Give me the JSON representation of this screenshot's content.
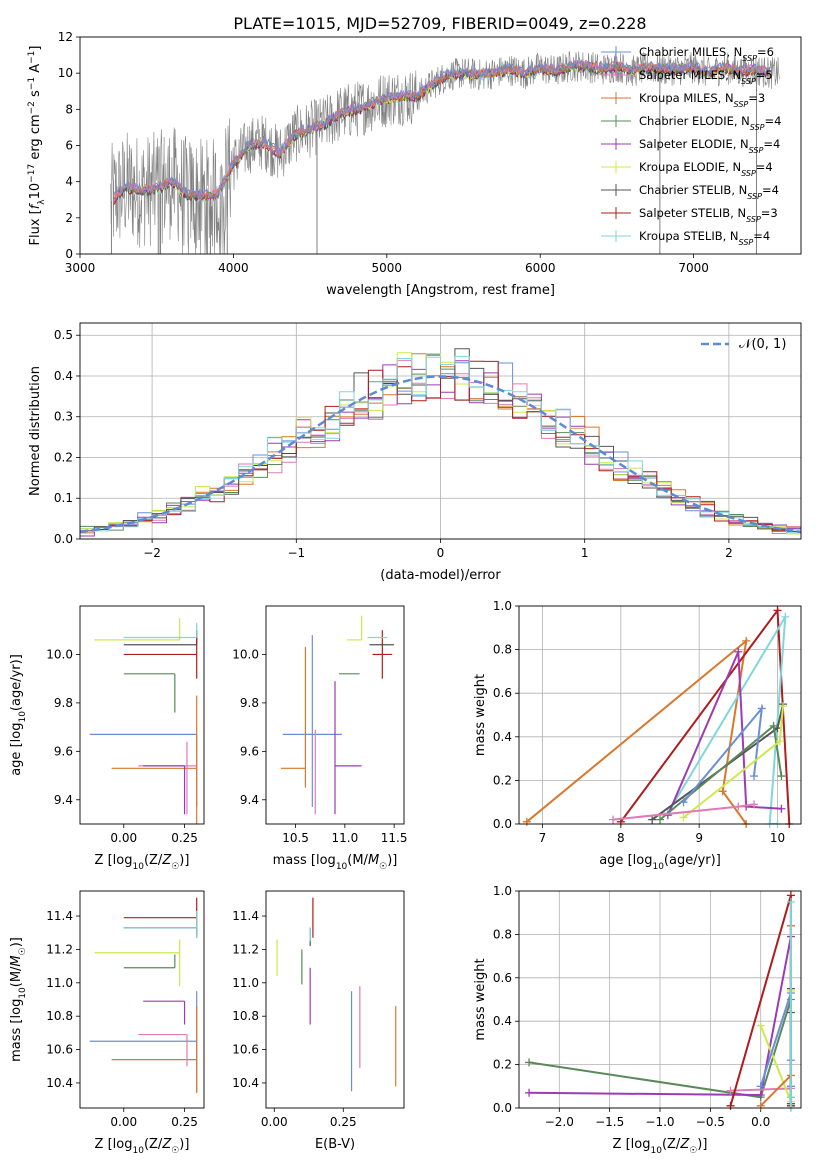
{
  "figure": {
    "title": "PLATE=1015, MJD=52709, FIBERID=0049, z=0.228"
  },
  "colors": {
    "chabrier_miles": "#6b8fd6",
    "salpeter_miles": "#e07bb8",
    "kroupa_miles": "#d9772b",
    "chabrier_elodie": "#5a8a5a",
    "salpeter_elodie": "#9c3bb5",
    "kroupa_elodie": "#cde94c",
    "chabrier_stelib": "#555555",
    "salpeter_stelib": "#b01c1c",
    "kroupa_stelib": "#7fd6dc",
    "data": "#808080",
    "gaussian": "#5b8bd8"
  },
  "chart_data": [
    {
      "id": "spectrum",
      "type": "line",
      "title": "PLATE=1015, MJD=52709, FIBERID=0049, z=0.228",
      "xlabel": "wavelength [Angstrom, rest frame]",
      "ylabel": "Flux [f_λ 10^-17 erg cm^-2 s^-1 A^-1]",
      "xlim": [
        3000,
        7700
      ],
      "ylim": [
        0,
        12
      ],
      "xticks": [
        3000,
        4000,
        5000,
        6000,
        7000
      ],
      "yticks": [
        0,
        2,
        4,
        6,
        8,
        10,
        12
      ],
      "legend_loc": "upper right",
      "legend": [
        {
          "label": "Chabrier MILES, N",
          "sub": "SSP",
          "n": "=6",
          "color_key": "chabrier_miles"
        },
        {
          "label": "Salpeter MILES, N",
          "sub": "SSP",
          "n": "=5",
          "color_key": "salpeter_miles"
        },
        {
          "label": "Kroupa MILES, N",
          "sub": "SSP",
          "n": "=3",
          "color_key": "kroupa_miles"
        },
        {
          "label": "Chabrier ELODIE, N",
          "sub": "SSP",
          "n": "=4",
          "color_key": "chabrier_elodie"
        },
        {
          "label": "Salpeter ELODIE, N",
          "sub": "SSP",
          "n": "=4",
          "color_key": "salpeter_elodie"
        },
        {
          "label": "Kroupa ELODIE, N",
          "sub": "SSP",
          "n": "=4",
          "color_key": "kroupa_elodie"
        },
        {
          "label": "Chabrier STELIB, N",
          "sub": "SSP",
          "n": "=4",
          "color_key": "chabrier_stelib"
        },
        {
          "label": "Salpeter STELIB, N",
          "sub": "SSP",
          "n": "=3",
          "color_key": "salpeter_stelib"
        },
        {
          "label": "Kroupa STELIB, N",
          "sub": "SSP",
          "n": "=4",
          "color_key": "kroupa_stelib"
        }
      ],
      "model_continuum": {
        "x": [
          3200,
          3300,
          3400,
          3500,
          3600,
          3700,
          3800,
          3900,
          4000,
          4100,
          4200,
          4300,
          4400,
          4500,
          4600,
          4700,
          4800,
          4900,
          5000,
          5100,
          5200,
          5300,
          5400,
          5500,
          5600,
          5700,
          5800,
          5900,
          6000,
          6100,
          6200,
          6300,
          6400,
          6500,
          6600,
          6700,
          6800,
          6900,
          7000,
          7100,
          7200,
          7300,
          7400,
          7500
        ],
        "y": [
          2.9,
          3.7,
          3.5,
          3.6,
          4.0,
          3.3,
          3.2,
          3.3,
          5.0,
          6.0,
          6.2,
          5.5,
          6.6,
          6.9,
          7.2,
          7.8,
          8.0,
          8.3,
          8.6,
          8.7,
          8.7,
          9.4,
          9.9,
          10.0,
          9.9,
          10.0,
          10.2,
          10.0,
          10.3,
          10.1,
          10.4,
          10.4,
          10.2,
          10.4,
          10.1,
          10.3,
          10.2,
          10.2,
          10.3,
          10.0,
          10.3,
          10.1,
          10.2,
          10.0
        ]
      }
    },
    {
      "id": "residuals",
      "type": "line",
      "xlabel": "(data-model)/error",
      "ylabel": "Normed distribution",
      "xlim": [
        -2.5,
        2.5
      ],
      "ylim": [
        0,
        0.53
      ],
      "xticks": [
        -2,
        -1,
        0,
        1,
        2
      ],
      "yticks": [
        0.0,
        0.1,
        0.2,
        0.3,
        0.4,
        0.5
      ],
      "grid": true,
      "legend_loc": "upper right",
      "legend_label": "𝒩(0, 1)",
      "gaussian": {
        "mean": 0,
        "sigma": 1
      },
      "bin_width": 0.1
    },
    {
      "id": "age_vs_Z",
      "type": "scatter",
      "xlabel": "Z [log10(Z/Z☉)]",
      "ylabel": "age [log10(age/yr)]",
      "xlim": [
        -0.18,
        0.33
      ],
      "ylim": [
        9.3,
        10.2
      ],
      "xticks": [
        0.0,
        0.25
      ],
      "yticks": [
        9.4,
        9.6,
        9.8,
        10.0
      ],
      "grid": false,
      "points": [
        {
          "color_key": "chabrier_miles",
          "x": 0.3,
          "xerr": [
            0.44,
            0.0
          ],
          "y": 9.67,
          "yerr": [
            0.3,
            0.0
          ]
        },
        {
          "color_key": "kroupa_miles",
          "x": 0.3,
          "xerr": [
            0.35,
            0.0
          ],
          "y": 9.53,
          "yerr": [
            0.3,
            0.3
          ]
        },
        {
          "color_key": "salpeter_miles",
          "x": 0.26,
          "xerr": [
            0.2,
            0.04
          ],
          "y": 9.54,
          "yerr": [
            0.2,
            0.1
          ]
        },
        {
          "color_key": "chabrier_elodie",
          "x": 0.21,
          "xerr": [
            0.21,
            0.0
          ],
          "y": 9.92,
          "yerr": [
            0.16,
            0.0
          ]
        },
        {
          "color_key": "salpeter_elodie",
          "x": 0.25,
          "xerr": [
            0.17,
            0.0
          ],
          "y": 9.54,
          "yerr": [
            0.2,
            0.0
          ]
        },
        {
          "color_key": "kroupa_elodie",
          "x": 0.23,
          "xerr": [
            0.35,
            0.0
          ],
          "y": 10.06,
          "yerr": [
            0.0,
            0.09
          ]
        },
        {
          "color_key": "chabrier_stelib",
          "x": 0.3,
          "xerr": [
            0.3,
            0.0
          ],
          "y": 10.04,
          "yerr": [
            0.0,
            0.06
          ]
        },
        {
          "color_key": "salpeter_stelib",
          "x": 0.3,
          "xerr": [
            0.3,
            0.0
          ],
          "y": 10.0,
          "yerr": [
            0.1,
            0.1
          ]
        },
        {
          "color_key": "kroupa_stelib",
          "x": 0.3,
          "xerr": [
            0.3,
            0.0
          ],
          "y": 10.07,
          "yerr": [
            0.0,
            0.06
          ]
        }
      ]
    },
    {
      "id": "age_vs_mass",
      "type": "scatter",
      "xlabel": "mass [log10(M/M☉)]",
      "ylabel": "",
      "xlim": [
        10.2,
        11.6
      ],
      "ylim": [
        9.3,
        10.2
      ],
      "xticks": [
        10.5,
        11.0,
        11.5
      ],
      "yticks": [
        9.4,
        9.6,
        9.8,
        10.0
      ],
      "grid": false,
      "points": [
        {
          "color_key": "chabrier_miles",
          "x": 10.67,
          "xerr": [
            0.3,
            0.3
          ],
          "y": 9.67,
          "yerr": [
            0.3,
            0.41
          ]
        },
        {
          "color_key": "kroupa_miles",
          "x": 10.6,
          "xerr": [
            0.25,
            0.0
          ],
          "y": 9.53,
          "yerr": [
            0.08,
            0.5
          ]
        },
        {
          "color_key": "salpeter_miles",
          "x": 10.7,
          "xerr": [
            0.0,
            0.0
          ],
          "y": 9.54,
          "yerr": [
            0.2,
            0.15
          ]
        },
        {
          "color_key": "chabrier_elodie",
          "x": 11.09,
          "xerr": [
            0.15,
            0.06
          ],
          "y": 9.92,
          "yerr": [
            0.0,
            0.0
          ]
        },
        {
          "color_key": "salpeter_elodie",
          "x": 10.9,
          "xerr": [
            0.0,
            0.0
          ],
          "y": 9.54,
          "yerr": [
            0.2,
            0.35
          ]
        },
        {
          "color_key": "kroupa_elodie",
          "x": 11.17,
          "xerr": [
            0.15,
            0.0
          ],
          "y": 10.06,
          "yerr": [
            0.0,
            0.1
          ]
        },
        {
          "color_key": "chabrier_stelib",
          "x": 11.33,
          "xerr": [
            0.08,
            0.17
          ],
          "y": 10.04,
          "yerr": [
            0.0,
            0.0
          ]
        },
        {
          "color_key": "salpeter_stelib",
          "x": 11.38,
          "xerr": [
            0.1,
            0.1
          ],
          "y": 10.0,
          "yerr": [
            0.1,
            0.1
          ]
        },
        {
          "color_key": "kroupa_stelib",
          "x": 11.33,
          "xerr": [
            0.1,
            0.1
          ],
          "y": 10.07,
          "yerr": [
            0.0,
            0.0
          ]
        },
        {
          "color_key": "salpeter_elodie",
          "x": 10.97,
          "xerr": [
            0.07,
            0.2
          ],
          "y": 9.54,
          "yerr": [
            0.0,
            0.0
          ]
        }
      ]
    },
    {
      "id": "massweight_vs_age",
      "type": "line",
      "xlabel": "age [log10(age/yr)]",
      "ylabel": "mass weight",
      "xlim": [
        6.7,
        10.3
      ],
      "ylim": [
        0,
        1
      ],
      "xticks": [
        7,
        8,
        9,
        10
      ],
      "yticks": [
        0.0,
        0.2,
        0.4,
        0.6,
        0.8,
        1.0
      ],
      "grid": true,
      "series": [
        {
          "color_key": "kroupa_miles",
          "x": [
            6.8,
            9.6,
            9.3,
            9.6
          ],
          "y": [
            0.01,
            0.84,
            0.15,
            0.0
          ]
        },
        {
          "color_key": "salpeter_stelib",
          "x": [
            8.0,
            10.0,
            10.15
          ],
          "y": [
            0.01,
            0.98,
            0.0
          ]
        },
        {
          "color_key": "kroupa_stelib",
          "x": [
            8.6,
            10.1,
            9.9,
            10.0
          ],
          "y": [
            0.05,
            0.95,
            0.0,
            0.0
          ]
        },
        {
          "color_key": "salpeter_elodie",
          "x": [
            8.6,
            9.5,
            9.6,
            10.05
          ],
          "y": [
            0.04,
            0.79,
            0.08,
            0.07
          ]
        },
        {
          "color_key": "chabrier_stelib",
          "x": [
            8.4,
            10.0,
            10.07
          ],
          "y": [
            0.02,
            0.44,
            0.55
          ]
        },
        {
          "color_key": "chabrier_elodie",
          "x": [
            8.5,
            9.95,
            10.05
          ],
          "y": [
            0.02,
            0.45,
            0.22
          ]
        },
        {
          "color_key": "chabrier_miles",
          "x": [
            8.8,
            9.8,
            9.7
          ],
          "y": [
            0.1,
            0.53,
            0.22
          ]
        },
        {
          "color_key": "kroupa_elodie",
          "x": [
            8.8,
            10.03,
            10.07
          ],
          "y": [
            0.03,
            0.38,
            0.54
          ]
        },
        {
          "color_key": "salpeter_miles",
          "x": [
            7.9,
            9.5,
            9.7
          ],
          "y": [
            0.02,
            0.08,
            0.09
          ]
        }
      ]
    },
    {
      "id": "mass_vs_Z",
      "type": "scatter",
      "xlabel": "Z [log10(Z/Z☉)]",
      "ylabel": "mass [log10(M/M☉)]",
      "xlim": [
        -0.18,
        0.33
      ],
      "ylim": [
        10.25,
        11.55
      ],
      "xticks": [
        0.0,
        0.25
      ],
      "yticks": [
        10.4,
        10.6,
        10.8,
        11.0,
        11.2,
        11.4
      ],
      "grid": false,
      "points": [
        {
          "color_key": "chabrier_miles",
          "x": 0.3,
          "xerr": [
            0.44,
            0.0
          ],
          "y": 10.65,
          "yerr": [
            0.3,
            0.3
          ]
        },
        {
          "color_key": "kroupa_miles",
          "x": 0.3,
          "xerr": [
            0.35,
            0.0
          ],
          "y": 10.54,
          "yerr": [
            0.2,
            0.32
          ]
        },
        {
          "color_key": "salpeter_miles",
          "x": 0.26,
          "xerr": [
            0.2,
            0.0
          ],
          "y": 10.69,
          "yerr": [
            0.19,
            0.0
          ]
        },
        {
          "color_key": "chabrier_elodie",
          "x": 0.21,
          "xerr": [
            0.21,
            0.0
          ],
          "y": 11.09,
          "yerr": [
            0.0,
            0.08
          ]
        },
        {
          "color_key": "salpeter_elodie",
          "x": 0.25,
          "xerr": [
            0.17,
            0.0
          ],
          "y": 10.89,
          "yerr": [
            0.14,
            0.0
          ]
        },
        {
          "color_key": "kroupa_elodie",
          "x": 0.23,
          "xerr": [
            0.35,
            0.0
          ],
          "y": 11.18,
          "yerr": [
            0.2,
            0.08
          ]
        },
        {
          "color_key": "chabrier_stelib",
          "x": 0.3,
          "xerr": [
            0.3,
            0.0
          ],
          "y": 11.33,
          "yerr": [
            0.06,
            0.0
          ]
        },
        {
          "color_key": "salpeter_stelib",
          "x": 0.3,
          "xerr": [
            0.3,
            0.0
          ],
          "y": 11.39,
          "yerr": [
            0.1,
            0.12
          ]
        },
        {
          "color_key": "kroupa_stelib",
          "x": 0.3,
          "xerr": [
            0.3,
            0.0
          ],
          "y": 11.33,
          "yerr": [
            0.06,
            0.1
          ]
        }
      ]
    },
    {
      "id": "mass_vs_ebv",
      "type": "scatter",
      "xlabel": "E(B-V)",
      "ylabel": "",
      "xlim": [
        -0.03,
        0.47
      ],
      "ylim": [
        10.25,
        11.55
      ],
      "xticks": [
        0.0,
        0.25
      ],
      "yticks": [
        10.4,
        10.6,
        10.8,
        11.0,
        11.2,
        11.4
      ],
      "grid": false,
      "points": [
        {
          "color_key": "chabrier_miles",
          "x": 0.28,
          "y": 10.65,
          "yerr": [
            0.3,
            0.3
          ]
        },
        {
          "color_key": "kroupa_miles",
          "x": 0.44,
          "y": 10.62,
          "yerr": [
            0.24,
            0.24
          ]
        },
        {
          "color_key": "salpeter_miles",
          "x": 0.31,
          "y": 10.7,
          "yerr": [
            0.21,
            0.28
          ]
        },
        {
          "color_key": "chabrier_elodie",
          "x": 0.1,
          "y": 11.09,
          "yerr": [
            0.1,
            0.11
          ]
        },
        {
          "color_key": "salpeter_elodie",
          "x": 0.13,
          "y": 10.92,
          "yerr": [
            0.17,
            0.17
          ]
        },
        {
          "color_key": "kroupa_elodie",
          "x": 0.01,
          "y": 11.1,
          "yerr": [
            0.06,
            0.16
          ]
        },
        {
          "color_key": "chabrier_stelib",
          "x": 0.13,
          "y": 11.33,
          "yerr": [
            0.11,
            0.0
          ]
        },
        {
          "color_key": "salpeter_stelib",
          "x": 0.14,
          "y": 11.39,
          "yerr": [
            0.12,
            0.12
          ]
        },
        {
          "color_key": "kroupa_stelib",
          "x": 0.13,
          "y": 11.33,
          "yerr": [
            0.08,
            0.0
          ]
        }
      ]
    },
    {
      "id": "massweight_vs_Z",
      "type": "line",
      "xlabel": "Z [log10(Z/Z☉)]",
      "ylabel": "mass weight",
      "xlim": [
        -2.4,
        0.4
      ],
      "ylim": [
        0,
        1
      ],
      "xticks": [
        -2.0,
        -1.5,
        -1.0,
        -0.5,
        0.0
      ],
      "yticks": [
        0.0,
        0.2,
        0.4,
        0.6,
        0.8,
        1.0
      ],
      "grid": true,
      "series": [
        {
          "color_key": "chabrier_elodie",
          "x": [
            -2.3,
            0.0,
            0.3,
            0.3
          ],
          "y": [
            0.21,
            0.05,
            0.5,
            0.02
          ]
        },
        {
          "color_key": "salpeter_elodie",
          "x": [
            -2.3,
            0.0,
            0.3,
            0.3
          ],
          "y": [
            0.07,
            0.06,
            0.79,
            0.05
          ]
        },
        {
          "color_key": "salpeter_miles",
          "x": [
            -0.3,
            0.3,
            0.3,
            0.3
          ],
          "y": [
            0.08,
            0.09,
            0.84,
            0.01
          ]
        },
        {
          "color_key": "salpeter_stelib",
          "x": [
            -0.3,
            0.3,
            0.3
          ],
          "y": [
            0.01,
            0.98,
            0.01
          ]
        },
        {
          "color_key": "kroupa_elodie",
          "x": [
            0.0,
            0.3,
            0.3,
            0.3
          ],
          "y": [
            0.38,
            0.03,
            0.54,
            0.05
          ]
        },
        {
          "color_key": "kroupa_miles",
          "x": [
            0.0,
            0.3,
            0.3
          ],
          "y": [
            0.01,
            0.15,
            0.84
          ]
        },
        {
          "color_key": "chabrier_miles",
          "x": [
            0.0,
            0.3,
            0.3,
            0.3
          ],
          "y": [
            0.1,
            0.53,
            0.22,
            0.1
          ]
        },
        {
          "color_key": "chabrier_stelib",
          "x": [
            0.3,
            0.3,
            0.3
          ],
          "y": [
            0.02,
            0.44,
            0.55
          ]
        },
        {
          "color_key": "kroupa_stelib",
          "x": [
            0.3,
            0.3,
            0.3
          ],
          "y": [
            0.05,
            0.95,
            0.0
          ]
        }
      ]
    }
  ]
}
